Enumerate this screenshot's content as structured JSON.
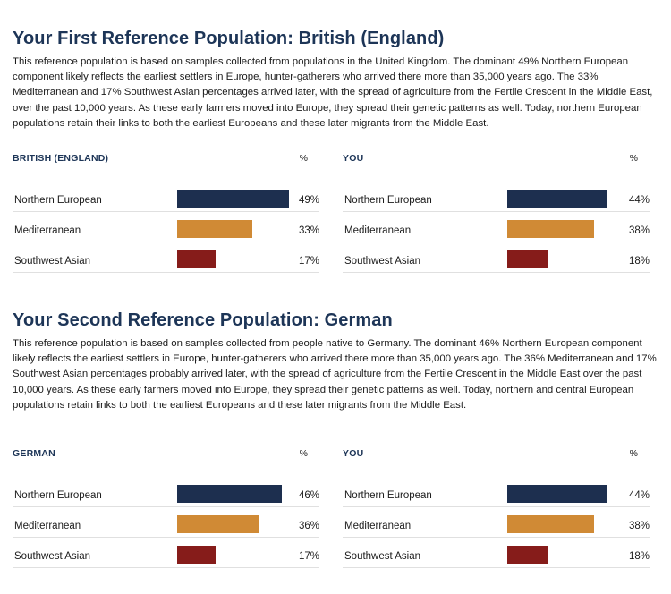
{
  "colors": {
    "heading": "#1d3557",
    "northern_european": "#1d2f4f",
    "mediterranean": "#d08a35",
    "southwest_asian": "#861c1a"
  },
  "sections": [
    {
      "title": "Your First Reference Population: British (England)",
      "paragraph": "This reference population is based on samples collected from populations in the United Kingdom. The dominant 49% Northern European component likely reflects the earliest settlers in Europe, hunter-gatherers who arrived there more than 35,000 years ago.  The 33% Mediterranean and 17% Southwest Asian percentages arrived later, with the spread of agriculture from the Fertile Crescent in the Middle East, over the past 10,000 years.  As these early farmers moved into Europe, they spread their genetic patterns as well. Today, northern European populations retain their links to both the earliest Europeans and these later migrants from the Middle East.",
      "tables": [
        {
          "title": "BRITISH (ENGLAND)",
          "pct_label": "%",
          "rows": [
            {
              "label": "Northern European",
              "value": 49,
              "value_text": "49%",
              "color": "#1d2f4f"
            },
            {
              "label": "Mediterranean",
              "value": 33,
              "value_text": "33%",
              "color": "#d08a35"
            },
            {
              "label": "Southwest Asian",
              "value": 17,
              "value_text": "17%",
              "color": "#861c1a"
            }
          ]
        },
        {
          "title": "YOU",
          "pct_label": "%",
          "rows": [
            {
              "label": "Northern European",
              "value": 44,
              "value_text": "44%",
              "color": "#1d2f4f"
            },
            {
              "label": "Mediterranean",
              "value": 38,
              "value_text": "38%",
              "color": "#d08a35"
            },
            {
              "label": "Southwest Asian",
              "value": 18,
              "value_text": "18%",
              "color": "#861c1a"
            }
          ]
        }
      ]
    },
    {
      "title": "Your Second Reference Population: German",
      "paragraph": "This reference population is based on samples collected from people native to Germany. The dominant 46% Northern European component likely reflects the earliest settlers in Europe, hunter-gatherers who arrived there more than 35,000 years ago. The 36% Mediterranean and 17% Southwest Asian percentages probably arrived later, with the spread of agriculture from the Fertile Crescent in the Middle East over the past 10,000 years. As these early farmers moved into Europe, they spread their genetic patterns as well. Today, northern and central European populations retain links to both the earliest Europeans and these later migrants from the Middle East.",
      "tables": [
        {
          "title": "GERMAN",
          "pct_label": "%",
          "rows": [
            {
              "label": "Northern European",
              "value": 46,
              "value_text": "46%",
              "color": "#1d2f4f"
            },
            {
              "label": "Mediterranean",
              "value": 36,
              "value_text": "36%",
              "color": "#d08a35"
            },
            {
              "label": "Southwest Asian",
              "value": 17,
              "value_text": "17%",
              "color": "#861c1a"
            }
          ]
        },
        {
          "title": "YOU",
          "pct_label": "%",
          "rows": [
            {
              "label": "Northern European",
              "value": 44,
              "value_text": "44%",
              "color": "#1d2f4f"
            },
            {
              "label": "Mediterranean",
              "value": 38,
              "value_text": "38%",
              "color": "#d08a35"
            },
            {
              "label": "Southwest Asian",
              "value": 18,
              "value_text": "18%",
              "color": "#861c1a"
            }
          ]
        }
      ]
    }
  ]
}
